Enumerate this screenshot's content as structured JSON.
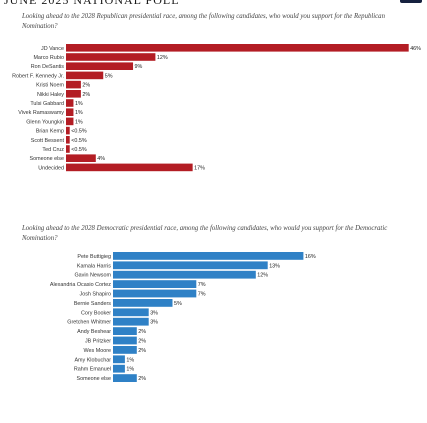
{
  "header": {
    "title": "JUNE 2025 NATIONAL POLL"
  },
  "colors": {
    "republican": "#b31d24",
    "democratic": "#2f81c6",
    "logo": "#16213f"
  },
  "chart_data": [
    {
      "type": "bar",
      "orientation": "horizontal",
      "title": "Looking ahead to the 2028 Republican presidential race, among the following candidates, who would you support for the Republican Nomination?",
      "color": "#b31d24",
      "categories": [
        "JD Vance",
        "Marco Rubio",
        "Ron DeSantis",
        "Robert F. Kennedy Jr.",
        "Kristi Noem",
        "Nikki Haley",
        "Tulsi Gabbard",
        "Vivek Ramaswamy",
        "Glenn Youngkin",
        "Brian Kemp",
        "Scott Bessent",
        "Ted Cruz",
        "Someone else",
        "Undecided"
      ],
      "values": [
        46,
        12,
        9,
        5,
        2,
        2,
        1,
        1,
        1,
        0.5,
        0.5,
        0.5,
        4,
        17
      ],
      "labels": [
        "46%",
        "12%",
        "9%",
        "5%",
        "2%",
        "2%",
        "1%",
        "1%",
        "1%",
        "<0.5%",
        "<0.5%",
        "<0.5%",
        "4%",
        "17%"
      ]
    },
    {
      "type": "bar",
      "orientation": "horizontal",
      "title": "Looking ahead to the 2028 Democratic presidential race, among the following candidates, who would you support for the Democratic Nomination?",
      "color": "#2f81c6",
      "categories": [
        "Pete Buttigieg",
        "Kamala Harris",
        "Gavin Newsom",
        "Alexandria Ocasio Cortez",
        "Josh Shapiro",
        "Bernie Sanders",
        "Cory Booker",
        "Gretchen Whitmer",
        "Andy Beshear",
        "JB Pritzker",
        "Wes Moore",
        "Amy Klobuchar",
        "Rahm Emanuel",
        "Someone else"
      ],
      "values": [
        16,
        13,
        12,
        7,
        7,
        5,
        3,
        3,
        2,
        2,
        2,
        1,
        1,
        2
      ],
      "labels": [
        "16%",
        "13%",
        "12%",
        "7%",
        "7%",
        "5%",
        "3%",
        "3%",
        "2%",
        "2%",
        "2%",
        "1%",
        "1%",
        "2%"
      ]
    }
  ]
}
